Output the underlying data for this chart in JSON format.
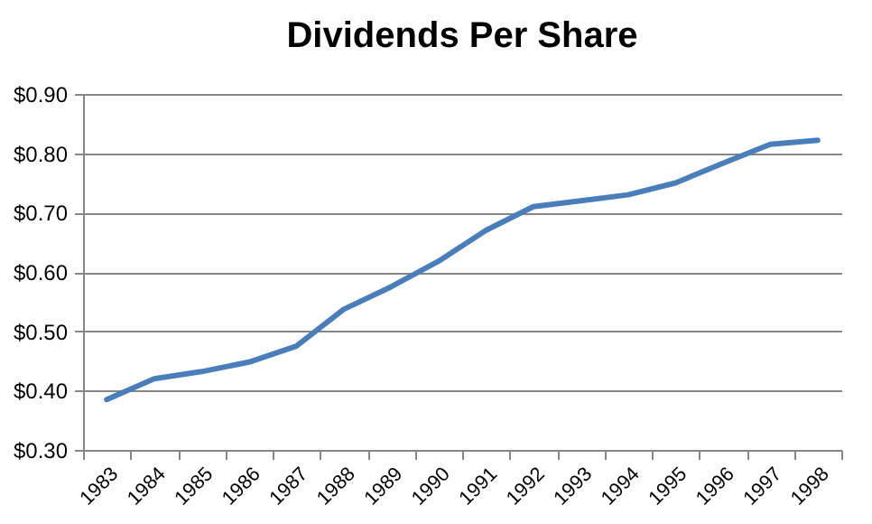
{
  "chart_data": {
    "type": "line",
    "title": "Dividends Per Share",
    "categories": [
      "1983",
      "1984",
      "1985",
      "1986",
      "1987",
      "1988",
      "1989",
      "1990",
      "1991",
      "1992",
      "1993",
      "1994",
      "1995",
      "1996",
      "1997",
      "1998"
    ],
    "series": [
      {
        "color": "#4a7ebb",
        "values": [
          0.385,
          0.42,
          0.432,
          0.448,
          0.475,
          0.537,
          0.575,
          0.618,
          0.67,
          0.71,
          0.72,
          0.73,
          0.75,
          0.783,
          0.815,
          0.822
        ]
      }
    ],
    "ylim": [
      0.3,
      0.9
    ],
    "yticks": [
      {
        "value": 0.3,
        "label": "$0.30"
      },
      {
        "value": 0.4,
        "label": "$0.40"
      },
      {
        "value": 0.5,
        "label": "$0.50"
      },
      {
        "value": 0.6,
        "label": "$0.60"
      },
      {
        "value": 0.7,
        "label": "$0.70"
      },
      {
        "value": 0.8,
        "label": "$0.80"
      },
      {
        "value": 0.9,
        "label": "$0.90"
      }
    ],
    "grid": "y",
    "legend": false,
    "marker": "none",
    "line_style": "solid"
  }
}
